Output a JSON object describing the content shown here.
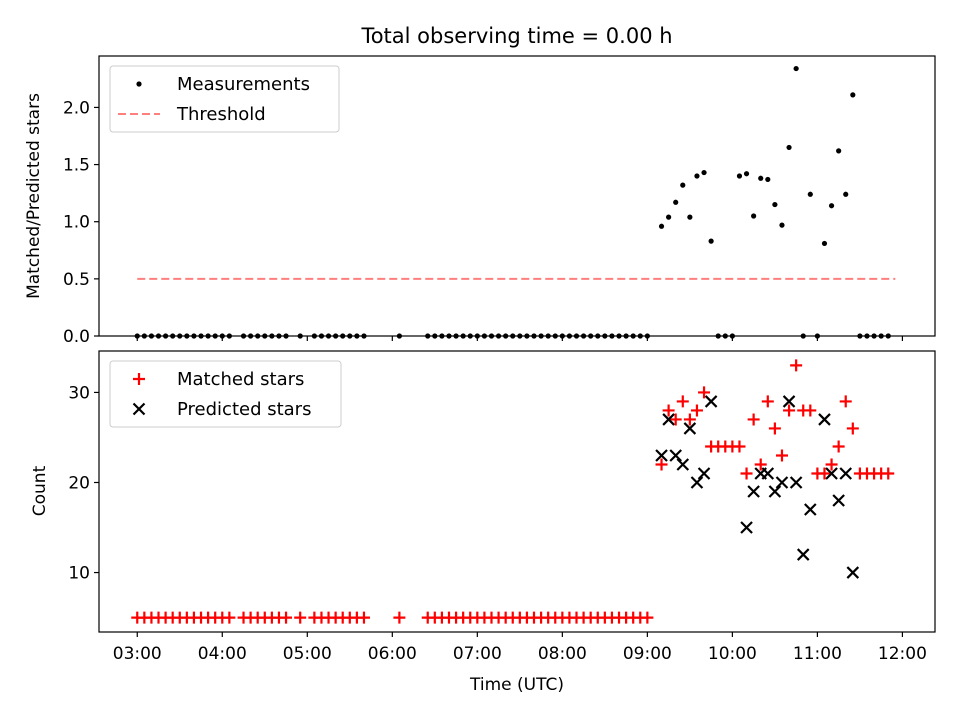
{
  "title": "Total observing time = 0.00 h",
  "xlabel": "Time (UTC)",
  "x_ticks": [
    "03:00",
    "04:00",
    "05:00",
    "06:00",
    "07:00",
    "08:00",
    "09:00",
    "10:00",
    "11:00",
    "12:00"
  ],
  "colors": {
    "measurements": "#000000",
    "threshold": "#ff7f7f",
    "matched": "#ff0000",
    "predicted": "#000000"
  },
  "chart_data": [
    {
      "type": "scatter",
      "ylabel": "Matched/Predicted stars",
      "xlim": [
        "02:33",
        "12:23"
      ],
      "ylim": [
        0,
        2.45
      ],
      "y_ticks": [
        "0.0",
        "0.5",
        "1.0",
        "1.5",
        "2.0"
      ],
      "legend_position": "top-left",
      "series": [
        {
          "name": "Measurements",
          "kind": "scatter-dot",
          "x": [
            "03:00",
            "03:05",
            "03:10",
            "03:15",
            "03:20",
            "03:25",
            "03:30",
            "03:35",
            "03:40",
            "03:45",
            "03:50",
            "03:55",
            "04:00",
            "04:05",
            "04:15",
            "04:20",
            "04:25",
            "04:30",
            "04:35",
            "04:40",
            "04:45",
            "04:55",
            "05:05",
            "05:10",
            "05:15",
            "05:20",
            "05:25",
            "05:30",
            "05:35",
            "05:40",
            "06:05",
            "06:25",
            "06:30",
            "06:35",
            "06:40",
            "06:45",
            "06:50",
            "06:55",
            "07:00",
            "07:05",
            "07:10",
            "07:15",
            "07:20",
            "07:25",
            "07:30",
            "07:35",
            "07:40",
            "07:45",
            "07:50",
            "07:55",
            "08:00",
            "08:05",
            "08:10",
            "08:15",
            "08:20",
            "08:25",
            "08:30",
            "08:35",
            "08:40",
            "08:45",
            "08:50",
            "08:55",
            "09:00",
            "09:10",
            "09:15",
            "09:20",
            "09:25",
            "09:30",
            "09:35",
            "09:40",
            "09:45",
            "09:50",
            "09:55",
            "10:00",
            "10:05",
            "10:10",
            "10:15",
            "10:20",
            "10:25",
            "10:30",
            "10:35",
            "10:40",
            "10:45",
            "10:50",
            "10:55",
            "11:00",
            "11:05",
            "11:10",
            "11:15",
            "11:20",
            "11:25",
            "11:30",
            "11:35",
            "11:40",
            "11:45",
            "11:50"
          ],
          "y": [
            0,
            0,
            0,
            0,
            0,
            0,
            0,
            0,
            0,
            0,
            0,
            0,
            0,
            0,
            0,
            0,
            0,
            0,
            0,
            0,
            0,
            0,
            0,
            0,
            0,
            0,
            0,
            0,
            0,
            0,
            0,
            0,
            0,
            0,
            0,
            0,
            0,
            0,
            0,
            0,
            0,
            0,
            0,
            0,
            0,
            0,
            0,
            0,
            0,
            0,
            0,
            0,
            0,
            0,
            0,
            0,
            0,
            0,
            0,
            0,
            0,
            0,
            0,
            0.96,
            1.04,
            1.17,
            1.32,
            1.04,
            1.4,
            1.43,
            0.83,
            0,
            0,
            0,
            1.4,
            1.42,
            1.05,
            1.38,
            1.37,
            1.15,
            0.97,
            1.65,
            2.34,
            0,
            1.24,
            0,
            0.81,
            1.14,
            1.62,
            1.24,
            2.11,
            0,
            0,
            0,
            0,
            0
          ]
        },
        {
          "name": "Threshold",
          "kind": "dashed-line",
          "x": [
            "03:00",
            "11:55"
          ],
          "y": [
            0.5,
            0.5
          ]
        }
      ]
    },
    {
      "type": "scatter",
      "ylabel": "Count",
      "xlim": [
        "02:33",
        "12:23"
      ],
      "ylim": [
        3.4,
        34.6
      ],
      "y_ticks": [
        "10",
        "20",
        "30"
      ],
      "legend_position": "top-left",
      "series": [
        {
          "name": "Matched stars",
          "kind": "plus",
          "x": [
            "03:00",
            "03:05",
            "03:10",
            "03:15",
            "03:20",
            "03:25",
            "03:30",
            "03:35",
            "03:40",
            "03:45",
            "03:50",
            "03:55",
            "04:00",
            "04:05",
            "04:15",
            "04:20",
            "04:25",
            "04:30",
            "04:35",
            "04:40",
            "04:45",
            "04:55",
            "05:05",
            "05:10",
            "05:15",
            "05:20",
            "05:25",
            "05:30",
            "05:35",
            "05:40",
            "06:05",
            "06:25",
            "06:30",
            "06:35",
            "06:40",
            "06:45",
            "06:50",
            "06:55",
            "07:00",
            "07:05",
            "07:10",
            "07:15",
            "07:20",
            "07:25",
            "07:30",
            "07:35",
            "07:40",
            "07:45",
            "07:50",
            "07:55",
            "08:00",
            "08:05",
            "08:10",
            "08:15",
            "08:20",
            "08:25",
            "08:30",
            "08:35",
            "08:40",
            "08:45",
            "08:50",
            "08:55",
            "09:00",
            "09:10",
            "09:15",
            "09:20",
            "09:25",
            "09:30",
            "09:35",
            "09:40",
            "09:45",
            "09:50",
            "09:55",
            "10:00",
            "10:05",
            "10:10",
            "10:15",
            "10:20",
            "10:25",
            "10:30",
            "10:35",
            "10:40",
            "10:45",
            "10:50",
            "10:55",
            "11:00",
            "11:05",
            "11:10",
            "11:15",
            "11:20",
            "11:25",
            "11:30",
            "11:35",
            "11:40",
            "11:45",
            "11:50"
          ],
          "y": [
            5,
            5,
            5,
            5,
            5,
            5,
            5,
            5,
            5,
            5,
            5,
            5,
            5,
            5,
            5,
            5,
            5,
            5,
            5,
            5,
            5,
            5,
            5,
            5,
            5,
            5,
            5,
            5,
            5,
            5,
            5,
            5,
            5,
            5,
            5,
            5,
            5,
            5,
            5,
            5,
            5,
            5,
            5,
            5,
            5,
            5,
            5,
            5,
            5,
            5,
            5,
            5,
            5,
            5,
            5,
            5,
            5,
            5,
            5,
            5,
            5,
            5,
            5,
            22,
            28,
            27,
            29,
            27,
            28,
            30,
            24,
            24,
            24,
            24,
            24,
            21,
            27,
            22,
            29,
            26,
            23,
            28,
            33,
            28,
            28,
            21,
            21,
            22,
            24,
            29,
            26,
            21,
            21,
            21,
            21,
            21
          ]
        },
        {
          "name": "Predicted stars",
          "kind": "cross",
          "x": [
            "09:10",
            "09:15",
            "09:20",
            "09:25",
            "09:30",
            "09:35",
            "09:40",
            "09:45",
            "10:10",
            "10:15",
            "10:20",
            "10:25",
            "10:30",
            "10:35",
            "10:40",
            "10:45",
            "10:50",
            "10:55",
            "11:05",
            "11:10",
            "11:15",
            "11:20",
            "11:25"
          ],
          "y": [
            23,
            27,
            23,
            22,
            26,
            20,
            21,
            29,
            15,
            19,
            21,
            21,
            19,
            20,
            29,
            20,
            12,
            17,
            27,
            21,
            18,
            21,
            10
          ]
        }
      ]
    }
  ]
}
